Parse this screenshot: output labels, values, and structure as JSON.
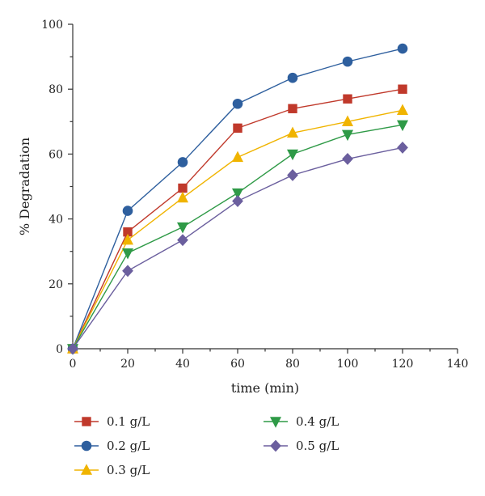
{
  "chart_data": {
    "type": "line",
    "title": "",
    "xlabel": "time (min)",
    "ylabel": "% Degradation",
    "xlim": [
      0,
      140
    ],
    "ylim": [
      0,
      100
    ],
    "xticks": [
      0,
      20,
      40,
      60,
      80,
      100,
      120,
      140
    ],
    "yticks": [
      0,
      20,
      40,
      60,
      80,
      100
    ],
    "grid": false,
    "legend_position": "bottom",
    "x": [
      0,
      20,
      40,
      60,
      80,
      100,
      120
    ],
    "series": [
      {
        "name": "0.1 g/L",
        "marker": "square",
        "color": "#c0392b",
        "values": [
          0,
          36,
          49.5,
          68,
          74,
          77,
          80
        ]
      },
      {
        "name": "0.2 g/L",
        "marker": "circle",
        "color": "#2e5f9e",
        "values": [
          0,
          42.5,
          57.5,
          75.5,
          83.5,
          88.5,
          92.5
        ]
      },
      {
        "name": "0.3 g/L",
        "marker": "triangle-up",
        "color": "#f0b400",
        "values": [
          0,
          33.5,
          46.5,
          59,
          66.5,
          70,
          73.5
        ]
      },
      {
        "name": "0.4 g/L",
        "marker": "triangle-down",
        "color": "#2f9a47",
        "values": [
          0,
          29.5,
          37.5,
          48,
          60,
          66,
          69
        ]
      },
      {
        "name": "0.5 g/L",
        "marker": "diamond",
        "color": "#6b5f9e",
        "values": [
          0,
          24,
          33.5,
          45.5,
          53.5,
          58.5,
          62
        ]
      }
    ]
  }
}
